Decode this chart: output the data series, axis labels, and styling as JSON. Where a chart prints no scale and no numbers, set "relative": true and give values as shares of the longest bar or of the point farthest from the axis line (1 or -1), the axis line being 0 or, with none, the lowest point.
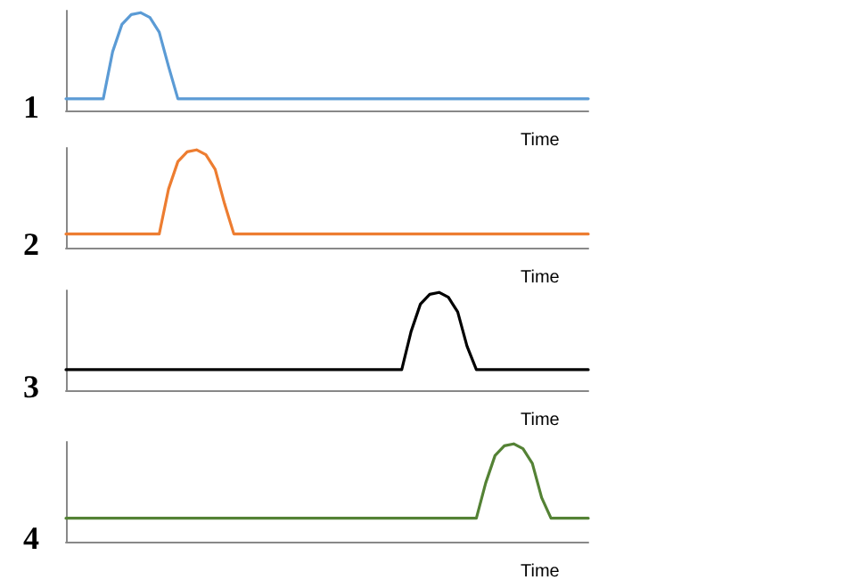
{
  "chart_data": [
    {
      "type": "line",
      "title": "1",
      "xlabel": "Time",
      "relative": true,
      "marker": "none",
      "color": "#5b9bd5",
      "categories": [
        null,
        null,
        null,
        null,
        null,
        null,
        null,
        null,
        null,
        null,
        null,
        null,
        null,
        null,
        null,
        null,
        null,
        null,
        null,
        null,
        null,
        null,
        null,
        null,
        null,
        null,
        null,
        null,
        null,
        null,
        null,
        null,
        null,
        null,
        null,
        null,
        null,
        null,
        null,
        null,
        null,
        null,
        null,
        null,
        null,
        null,
        null,
        null,
        null,
        null,
        null,
        null,
        null,
        null,
        null,
        null,
        null
      ],
      "values": [
        0.12,
        0.12,
        0.12,
        0.12,
        0.12,
        0.6,
        0.88,
        0.98,
        1,
        0.95,
        0.8,
        0.45,
        0.12,
        0.12,
        0.12,
        0.12,
        0.12,
        0.12,
        0.12,
        0.12,
        0.12,
        0.12,
        0.12,
        0.12,
        0.12,
        0.12,
        0.12,
        0.12,
        0.12,
        0.12,
        0.12,
        0.12,
        0.12,
        0.12,
        0.12,
        0.12,
        0.12,
        0.12,
        0.12,
        0.12,
        0.12,
        0.12,
        0.12,
        0.12,
        0.12,
        0.12,
        0.12,
        0.12,
        0.12,
        0.12,
        0.12,
        0.12,
        0.12,
        0.12,
        0.12,
        0.12,
        0.12
      ]
    },
    {
      "type": "line",
      "title": "2",
      "xlabel": "Time",
      "relative": true,
      "marker": "none",
      "color": "#ed7d31",
      "categories": [
        null,
        null,
        null,
        null,
        null,
        null,
        null,
        null,
        null,
        null,
        null,
        null,
        null,
        null,
        null,
        null,
        null,
        null,
        null,
        null,
        null,
        null,
        null,
        null,
        null,
        null,
        null,
        null,
        null,
        null,
        null,
        null,
        null,
        null,
        null,
        null,
        null,
        null,
        null,
        null,
        null,
        null,
        null,
        null,
        null,
        null,
        null,
        null,
        null,
        null,
        null,
        null,
        null,
        null,
        null,
        null,
        null
      ],
      "values": [
        0.14,
        0.14,
        0.14,
        0.14,
        0.14,
        0.14,
        0.14,
        0.14,
        0.14,
        0.14,
        0.14,
        0.6,
        0.88,
        0.98,
        1,
        0.95,
        0.8,
        0.45,
        0.14,
        0.14,
        0.14,
        0.14,
        0.14,
        0.14,
        0.14,
        0.14,
        0.14,
        0.14,
        0.14,
        0.14,
        0.14,
        0.14,
        0.14,
        0.14,
        0.14,
        0.14,
        0.14,
        0.14,
        0.14,
        0.14,
        0.14,
        0.14,
        0.14,
        0.14,
        0.14,
        0.14,
        0.14,
        0.14,
        0.14,
        0.14,
        0.14,
        0.14,
        0.14,
        0.14,
        0.14,
        0.14,
        0.14
      ]
    },
    {
      "type": "line",
      "title": "3",
      "xlabel": "Time",
      "relative": true,
      "marker": "none",
      "color": "#000000",
      "categories": [
        null,
        null,
        null,
        null,
        null,
        null,
        null,
        null,
        null,
        null,
        null,
        null,
        null,
        null,
        null,
        null,
        null,
        null,
        null,
        null,
        null,
        null,
        null,
        null,
        null,
        null,
        null,
        null,
        null,
        null,
        null,
        null,
        null,
        null,
        null,
        null,
        null,
        null,
        null,
        null,
        null,
        null,
        null,
        null,
        null,
        null,
        null,
        null,
        null,
        null,
        null,
        null,
        null,
        null,
        null,
        null,
        null
      ],
      "values": [
        0.21,
        0.21,
        0.21,
        0.21,
        0.21,
        0.21,
        0.21,
        0.21,
        0.21,
        0.21,
        0.21,
        0.21,
        0.21,
        0.21,
        0.21,
        0.21,
        0.21,
        0.21,
        0.21,
        0.21,
        0.21,
        0.21,
        0.21,
        0.21,
        0.21,
        0.21,
        0.21,
        0.21,
        0.21,
        0.21,
        0.21,
        0.21,
        0.21,
        0.21,
        0.21,
        0.21,
        0.21,
        0.6,
        0.88,
        0.98,
        1,
        0.95,
        0.8,
        0.45,
        0.21,
        0.21,
        0.21,
        0.21,
        0.21,
        0.21,
        0.21,
        0.21,
        0.21,
        0.21,
        0.21,
        0.21,
        0.21
      ]
    },
    {
      "type": "line",
      "title": "4",
      "xlabel": "Time",
      "relative": true,
      "marker": "none",
      "color": "#548235",
      "categories": [
        null,
        null,
        null,
        null,
        null,
        null,
        null,
        null,
        null,
        null,
        null,
        null,
        null,
        null,
        null,
        null,
        null,
        null,
        null,
        null,
        null,
        null,
        null,
        null,
        null,
        null,
        null,
        null,
        null,
        null,
        null,
        null,
        null,
        null,
        null,
        null,
        null,
        null,
        null,
        null,
        null,
        null,
        null,
        null,
        null,
        null,
        null,
        null,
        null,
        null,
        null,
        null,
        null,
        null,
        null,
        null,
        null
      ],
      "values": [
        0.24,
        0.24,
        0.24,
        0.24,
        0.24,
        0.24,
        0.24,
        0.24,
        0.24,
        0.24,
        0.24,
        0.24,
        0.24,
        0.24,
        0.24,
        0.24,
        0.24,
        0.24,
        0.24,
        0.24,
        0.24,
        0.24,
        0.24,
        0.24,
        0.24,
        0.24,
        0.24,
        0.24,
        0.24,
        0.24,
        0.24,
        0.24,
        0.24,
        0.24,
        0.24,
        0.24,
        0.24,
        0.24,
        0.24,
        0.24,
        0.24,
        0.24,
        0.24,
        0.24,
        0.24,
        0.6,
        0.88,
        0.98,
        1,
        0.95,
        0.8,
        0.45,
        0.24,
        0.24,
        0.24,
        0.24,
        0.24
      ]
    }
  ]
}
